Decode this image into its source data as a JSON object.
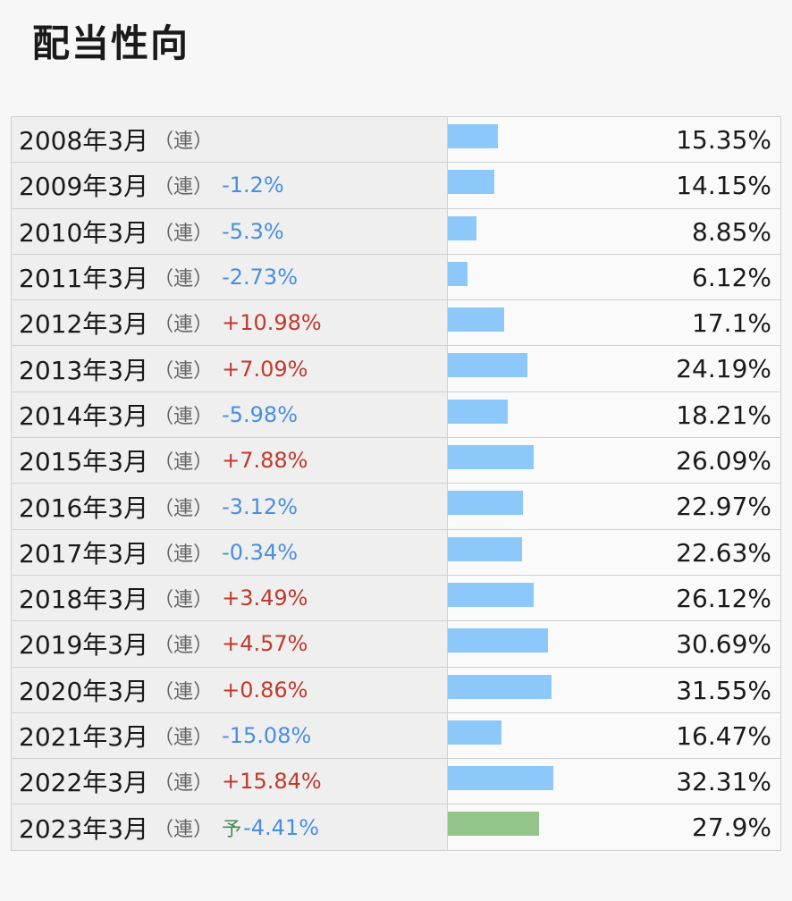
{
  "title": "配当性向",
  "colors": {
    "bar": "#8dc8fb",
    "forecast_bar": "#93c48a",
    "increase": "#c0392b",
    "decrease": "#4a8ee0",
    "forecast_label": "#4a8a5a"
  },
  "chart_data": {
    "type": "bar",
    "title": "配当性向",
    "xlabel": "",
    "ylabel": "",
    "categories": [
      "2008年3月",
      "2009年3月",
      "2010年3月",
      "2011年3月",
      "2012年3月",
      "2013年3月",
      "2014年3月",
      "2015年3月",
      "2016年3月",
      "2017年3月",
      "2018年3月",
      "2019年3月",
      "2020年3月",
      "2021年3月",
      "2022年3月",
      "2023年3月"
    ],
    "values": [
      15.35,
      14.15,
      8.85,
      6.12,
      17.1,
      24.19,
      18.21,
      26.09,
      22.97,
      22.63,
      26.12,
      30.69,
      31.55,
      16.47,
      32.31,
      27.9
    ],
    "rows": [
      {
        "period": "2008年3月",
        "kind": "（連）",
        "forecast": "",
        "change": "",
        "direction": "",
        "value": 15.35,
        "value_text": "15.35%"
      },
      {
        "period": "2009年3月",
        "kind": "（連）",
        "forecast": "",
        "change": "-1.2%",
        "direction": "down",
        "value": 14.15,
        "value_text": "14.15%"
      },
      {
        "period": "2010年3月",
        "kind": "（連）",
        "forecast": "",
        "change": "-5.3%",
        "direction": "down",
        "value": 8.85,
        "value_text": "8.85%"
      },
      {
        "period": "2011年3月",
        "kind": "（連）",
        "forecast": "",
        "change": "-2.73%",
        "direction": "down",
        "value": 6.12,
        "value_text": "6.12%"
      },
      {
        "period": "2012年3月",
        "kind": "（連）",
        "forecast": "",
        "change": "+10.98%",
        "direction": "up",
        "value": 17.1,
        "value_text": "17.1%"
      },
      {
        "period": "2013年3月",
        "kind": "（連）",
        "forecast": "",
        "change": "+7.09%",
        "direction": "up",
        "value": 24.19,
        "value_text": "24.19%"
      },
      {
        "period": "2014年3月",
        "kind": "（連）",
        "forecast": "",
        "change": "-5.98%",
        "direction": "down",
        "value": 18.21,
        "value_text": "18.21%"
      },
      {
        "period": "2015年3月",
        "kind": "（連）",
        "forecast": "",
        "change": "+7.88%",
        "direction": "up",
        "value": 26.09,
        "value_text": "26.09%"
      },
      {
        "period": "2016年3月",
        "kind": "（連）",
        "forecast": "",
        "change": "-3.12%",
        "direction": "down",
        "value": 22.97,
        "value_text": "22.97%"
      },
      {
        "period": "2017年3月",
        "kind": "（連）",
        "forecast": "",
        "change": "-0.34%",
        "direction": "down",
        "value": 22.63,
        "value_text": "22.63%"
      },
      {
        "period": "2018年3月",
        "kind": "（連）",
        "forecast": "",
        "change": "+3.49%",
        "direction": "up",
        "value": 26.12,
        "value_text": "26.12%"
      },
      {
        "period": "2019年3月",
        "kind": "（連）",
        "forecast": "",
        "change": "+4.57%",
        "direction": "up",
        "value": 30.69,
        "value_text": "30.69%"
      },
      {
        "period": "2020年3月",
        "kind": "（連）",
        "forecast": "",
        "change": "+0.86%",
        "direction": "up",
        "value": 31.55,
        "value_text": "31.55%"
      },
      {
        "period": "2021年3月",
        "kind": "（連）",
        "forecast": "",
        "change": "-15.08%",
        "direction": "down",
        "value": 16.47,
        "value_text": "16.47%"
      },
      {
        "period": "2022年3月",
        "kind": "（連）",
        "forecast": "",
        "change": "+15.84%",
        "direction": "up",
        "value": 32.31,
        "value_text": "32.31%"
      },
      {
        "period": "2023年3月",
        "kind": "（連）",
        "forecast": "予",
        "change": "-4.41%",
        "direction": "down",
        "value": 27.9,
        "value_text": "27.9%"
      }
    ]
  }
}
